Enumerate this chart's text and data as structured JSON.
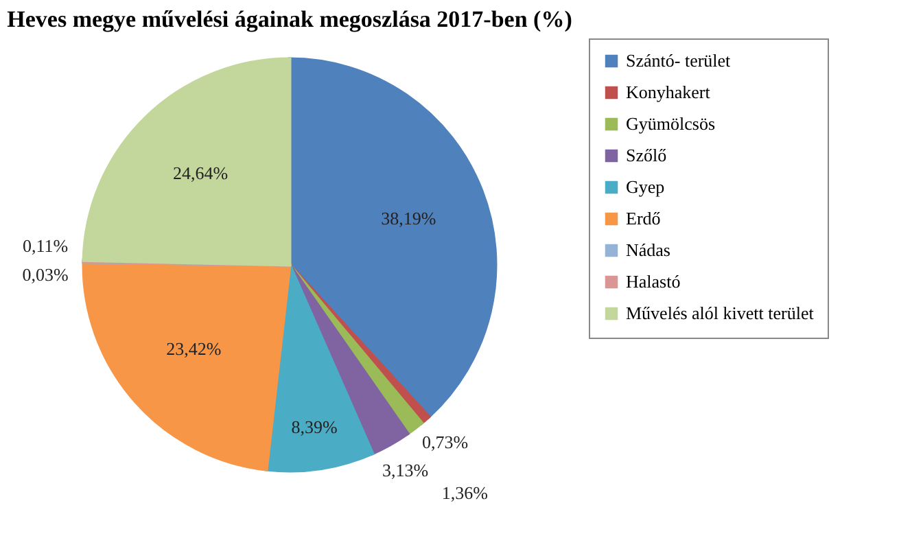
{
  "chart_data": {
    "type": "pie",
    "title": "Heves megye művelési ágainak megoszlása 2017-ben (%)",
    "categories": [
      "Szántó- terület",
      "Konyhakert",
      "Gyümölcsös",
      "Szőlő",
      "Gyep",
      "Erdő",
      "Nádas",
      "Halastó",
      "Művelés alól kivett terület"
    ],
    "values": [
      38.19,
      0.73,
      1.36,
      3.13,
      8.39,
      23.42,
      0.03,
      0.11,
      24.64
    ],
    "value_labels": [
      "38,19%",
      "0,73%",
      "1,36%",
      "3,13%",
      "8,39%",
      "23,42%",
      "0,03%",
      "0,11%",
      "24,64%"
    ],
    "colors": [
      "#4f81bd",
      "#c0504d",
      "#9bbb59",
      "#8064a2",
      "#4bacc6",
      "#f79646",
      "#95b3d7",
      "#d99694",
      "#c3d69b"
    ],
    "legend": "right"
  }
}
